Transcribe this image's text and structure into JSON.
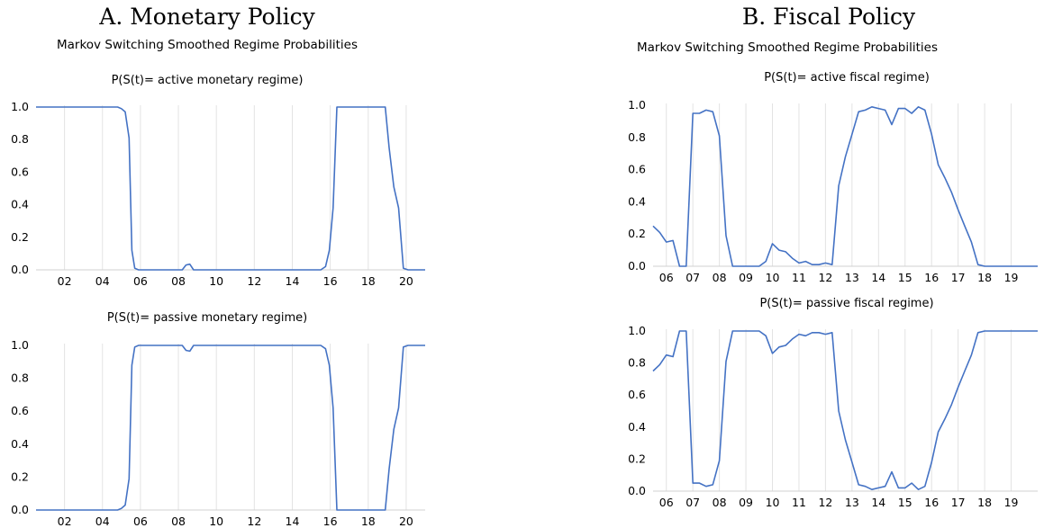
{
  "panels": {
    "monetary": {
      "title": "A.  Monetary Policy",
      "subtitle": "Markov Switching Smoothed Regime Probabilities"
    },
    "fiscal": {
      "title": "B.  Fiscal Policy",
      "subtitle": "Markov Switching Smoothed Regime Probabilities"
    }
  },
  "chart_data": [
    {
      "id": "mon_active",
      "type": "line",
      "title": "P(S(t)= active monetary regime)",
      "color": "#4472C4",
      "xlim": [
        2000.5,
        2021
      ],
      "ylim": [
        0,
        1
      ],
      "xticks": [
        2002,
        2004,
        2006,
        2008,
        2010,
        2012,
        2014,
        2016,
        2018,
        2020
      ],
      "xtick_labels": [
        "02",
        "04",
        "06",
        "08",
        "10",
        "12",
        "14",
        "16",
        "18",
        "20"
      ],
      "yticks": [
        0,
        0.2,
        0.4,
        0.6,
        0.8,
        1.0
      ],
      "ytick_labels": [
        "0.0",
        "0.2",
        "0.4",
        "0.6",
        "0.8",
        "1.0"
      ],
      "grid": "vertical",
      "x": [
        2000.5,
        2004.8,
        2005.0,
        2005.2,
        2005.4,
        2005.55,
        2005.7,
        2005.9,
        2006.3,
        2007.5,
        2008.2,
        2008.4,
        2008.6,
        2008.8,
        2009.0,
        2012.0,
        2014.0,
        2015.5,
        2015.75,
        2015.95,
        2016.15,
        2016.35,
        2016.55,
        2018.0,
        2018.9,
        2019.1,
        2019.35,
        2019.6,
        2019.85,
        2020.1,
        2021.0
      ],
      "values": [
        1.0,
        1.0,
        0.99,
        0.97,
        0.81,
        0.12,
        0.01,
        0.0,
        0.0,
        0.0,
        0.0,
        0.03,
        0.035,
        0.0,
        0.0,
        0.0,
        0.0,
        0.0,
        0.02,
        0.12,
        0.38,
        1.0,
        1.0,
        1.0,
        1.0,
        0.75,
        0.51,
        0.38,
        0.01,
        0.0,
        0.0
      ]
    },
    {
      "id": "mon_passive",
      "type": "line",
      "title": "P(S(t)= passive monetary regime)",
      "color": "#4472C4",
      "xlim": [
        2000.5,
        2021
      ],
      "ylim": [
        0,
        1
      ],
      "xticks": [
        2002,
        2004,
        2006,
        2008,
        2010,
        2012,
        2014,
        2016,
        2018,
        2020
      ],
      "xtick_labels": [
        "02",
        "04",
        "06",
        "08",
        "10",
        "12",
        "14",
        "16",
        "18",
        "20"
      ],
      "yticks": [
        0,
        0.2,
        0.4,
        0.6,
        0.8,
        1.0
      ],
      "ytick_labels": [
        "0.0",
        "0.2",
        "0.4",
        "0.6",
        "0.8",
        "1.0"
      ],
      "grid": "vertical",
      "x": [
        2000.5,
        2004.8,
        2005.0,
        2005.2,
        2005.4,
        2005.55,
        2005.7,
        2005.9,
        2006.3,
        2007.5,
        2008.2,
        2008.4,
        2008.6,
        2008.8,
        2009.0,
        2012.0,
        2014.0,
        2015.5,
        2015.75,
        2015.95,
        2016.15,
        2016.35,
        2016.55,
        2018.0,
        2018.9,
        2019.1,
        2019.35,
        2019.6,
        2019.85,
        2020.1,
        2021.0
      ],
      "values": [
        0.0,
        0.0,
        0.01,
        0.03,
        0.19,
        0.88,
        0.99,
        1.0,
        1.0,
        1.0,
        1.0,
        0.97,
        0.965,
        1.0,
        1.0,
        1.0,
        1.0,
        1.0,
        0.98,
        0.88,
        0.62,
        0.0,
        0.0,
        0.0,
        0.0,
        0.25,
        0.49,
        0.62,
        0.99,
        1.0,
        1.0
      ]
    },
    {
      "id": "fis_active",
      "type": "line",
      "title": "P(S(t)= active fiscal regime)",
      "color": "#4472C4",
      "xlim": [
        2005.5,
        2020
      ],
      "ylim": [
        0,
        1
      ],
      "xticks": [
        2006,
        2007,
        2008,
        2009,
        2010,
        2011,
        2012,
        2013,
        2014,
        2015,
        2016,
        2017,
        2018,
        2019
      ],
      "xtick_labels": [
        "06",
        "07",
        "08",
        "09",
        "10",
        "11",
        "12",
        "13",
        "14",
        "15",
        "16",
        "17",
        "18",
        "19"
      ],
      "yticks": [
        0,
        0.2,
        0.4,
        0.6,
        0.8,
        1.0
      ],
      "ytick_labels": [
        "0.0",
        "0.2",
        "0.4",
        "0.6",
        "0.8",
        "1.0"
      ],
      "grid": "vertical",
      "x": [
        2005.5,
        2005.75,
        2006.0,
        2006.25,
        2006.5,
        2006.75,
        2007.0,
        2007.25,
        2007.5,
        2007.75,
        2008.0,
        2008.25,
        2008.5,
        2008.75,
        2009.0,
        2009.25,
        2009.5,
        2009.75,
        2010.0,
        2010.25,
        2010.5,
        2010.75,
        2011.0,
        2011.25,
        2011.5,
        2011.75,
        2012.0,
        2012.25,
        2012.5,
        2012.75,
        2013.0,
        2013.25,
        2013.5,
        2013.75,
        2014.0,
        2014.25,
        2014.5,
        2014.75,
        2015.0,
        2015.25,
        2015.5,
        2015.75,
        2016.0,
        2016.25,
        2016.5,
        2016.75,
        2017.0,
        2017.25,
        2017.5,
        2017.75,
        2018.0,
        2018.25,
        2018.5,
        2018.75,
        2019.0,
        2019.25,
        2019.5,
        2019.75,
        2020.0
      ],
      "values": [
        0.25,
        0.21,
        0.15,
        0.16,
        0.0,
        0.0,
        0.95,
        0.95,
        0.97,
        0.96,
        0.81,
        0.19,
        0.0,
        0.0,
        0.0,
        0.0,
        0.0,
        0.03,
        0.14,
        0.1,
        0.09,
        0.05,
        0.02,
        0.03,
        0.01,
        0.01,
        0.02,
        0.01,
        0.5,
        0.68,
        0.82,
        0.96,
        0.97,
        0.99,
        0.98,
        0.97,
        0.88,
        0.98,
        0.98,
        0.95,
        0.99,
        0.97,
        0.82,
        0.63,
        0.55,
        0.46,
        0.35,
        0.25,
        0.15,
        0.01,
        0.0,
        0.0,
        0.0,
        0.0,
        0.0,
        0.0,
        0.0,
        0.0,
        0.0
      ]
    },
    {
      "id": "fis_passive",
      "type": "line",
      "title": "P(S(t)= passive fiscal regime)",
      "color": "#4472C4",
      "xlim": [
        2005.5,
        2020
      ],
      "ylim": [
        0,
        1
      ],
      "xticks": [
        2006,
        2007,
        2008,
        2009,
        2010,
        2011,
        2012,
        2013,
        2014,
        2015,
        2016,
        2017,
        2018,
        2019
      ],
      "xtick_labels": [
        "06",
        "07",
        "08",
        "09",
        "10",
        "11",
        "12",
        "13",
        "14",
        "15",
        "16",
        "17",
        "18",
        "19"
      ],
      "yticks": [
        0,
        0.2,
        0.4,
        0.6,
        0.8,
        1.0
      ],
      "ytick_labels": [
        "0.0",
        "0.2",
        "0.4",
        "0.6",
        "0.8",
        "1.0"
      ],
      "grid": "vertical",
      "x": [
        2005.5,
        2005.75,
        2006.0,
        2006.25,
        2006.5,
        2006.75,
        2007.0,
        2007.25,
        2007.5,
        2007.75,
        2008.0,
        2008.25,
        2008.5,
        2008.75,
        2009.0,
        2009.25,
        2009.5,
        2009.75,
        2010.0,
        2010.25,
        2010.5,
        2010.75,
        2011.0,
        2011.25,
        2011.5,
        2011.75,
        2012.0,
        2012.25,
        2012.5,
        2012.75,
        2013.0,
        2013.25,
        2013.5,
        2013.75,
        2014.0,
        2014.25,
        2014.5,
        2014.75,
        2015.0,
        2015.25,
        2015.5,
        2015.75,
        2016.0,
        2016.25,
        2016.5,
        2016.75,
        2017.0,
        2017.25,
        2017.5,
        2017.75,
        2018.0,
        2018.25,
        2018.5,
        2018.75,
        2019.0,
        2019.25,
        2019.5,
        2019.75,
        2020.0
      ],
      "values": [
        0.75,
        0.79,
        0.85,
        0.84,
        1.0,
        1.0,
        0.05,
        0.05,
        0.03,
        0.04,
        0.19,
        0.81,
        1.0,
        1.0,
        1.0,
        1.0,
        1.0,
        0.97,
        0.86,
        0.9,
        0.91,
        0.95,
        0.98,
        0.97,
        0.99,
        0.99,
        0.98,
        0.99,
        0.5,
        0.32,
        0.18,
        0.04,
        0.03,
        0.01,
        0.02,
        0.03,
        0.12,
        0.02,
        0.02,
        0.05,
        0.01,
        0.03,
        0.18,
        0.37,
        0.45,
        0.54,
        0.65,
        0.75,
        0.85,
        0.99,
        1.0,
        1.0,
        1.0,
        1.0,
        1.0,
        1.0,
        1.0,
        1.0,
        1.0
      ]
    }
  ]
}
